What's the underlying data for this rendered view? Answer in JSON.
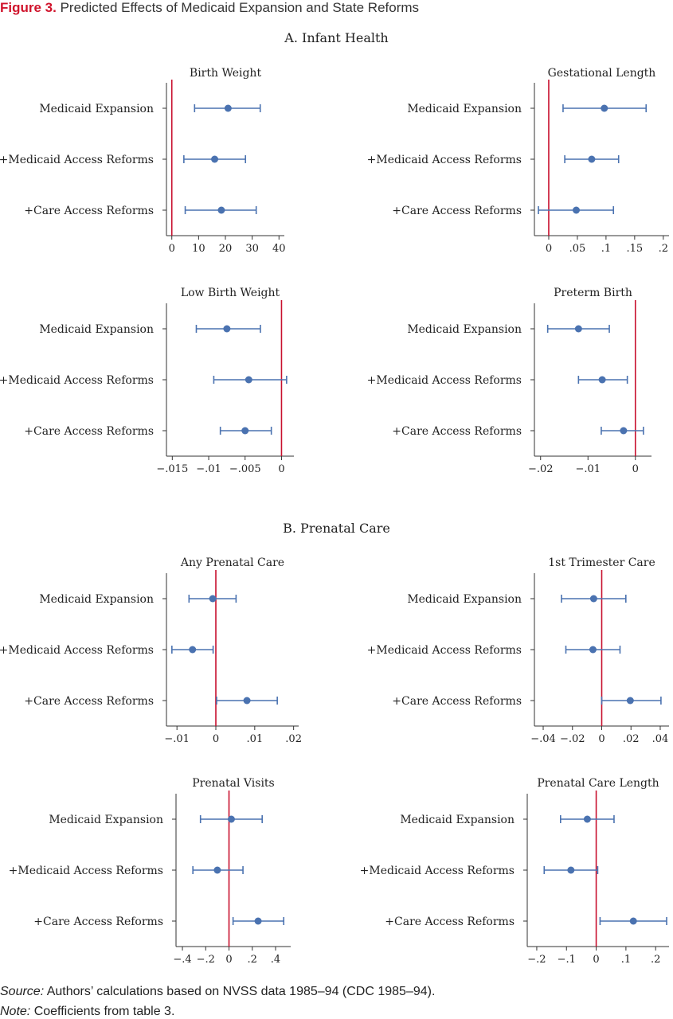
{
  "figure": {
    "label": "Figure 3.",
    "title": "Predicted Effects of Medicaid Expansion and State Reforms"
  },
  "panels": {
    "a": "A. Infant Health",
    "b": "B. Prenatal Care"
  },
  "footer": {
    "source_label": "Source:",
    "source_text": "Authors’ calculations based on NVSS data 1985–94 (CDC 1985–94).",
    "note_label": "Note:",
    "note_text": "Coefficients from table 3."
  },
  "colors": {
    "point": "#4a72b0",
    "zero_line": "#c8102e",
    "axis": "#333333"
  },
  "chart_data": [
    {
      "type": "scatter",
      "title": "Birth Weight",
      "categories": [
        "Medicaid Expansion",
        "+Medicaid Access Reforms",
        "+Care Access Reforms"
      ],
      "estimates": [
        21,
        16,
        18.5
      ],
      "ci_low": [
        8.5,
        4.5,
        5
      ],
      "ci_high": [
        33,
        27.5,
        31.5
      ],
      "xlim": [
        -2,
        42
      ],
      "xticks": [
        0,
        10,
        20,
        30,
        40
      ],
      "xtick_labels": [
        "0",
        "10",
        "20",
        "30",
        "40"
      ],
      "reference_line": 0
    },
    {
      "type": "scatter",
      "title": "Gestational Length",
      "categories": [
        "Medicaid Expansion",
        "+Medicaid Access Reforms",
        "+Care Access Reforms"
      ],
      "estimates": [
        0.097,
        0.075,
        0.048
      ],
      "ci_low": [
        0.025,
        0.028,
        -0.018
      ],
      "ci_high": [
        0.17,
        0.122,
        0.113
      ],
      "xlim": [
        -0.025,
        0.21
      ],
      "xticks": [
        0,
        0.05,
        0.1,
        0.15,
        0.2
      ],
      "xtick_labels": [
        "0",
        ".05",
        ".1",
        ".15",
        ".2"
      ],
      "reference_line": 0
    },
    {
      "type": "scatter",
      "title": "Low Birth Weight",
      "categories": [
        "Medicaid Expansion",
        "+Medicaid Access Reforms",
        "+Care Access Reforms"
      ],
      "estimates": [
        -0.0075,
        -0.0045,
        -0.005
      ],
      "ci_low": [
        -0.0117,
        -0.0093,
        -0.0084
      ],
      "ci_high": [
        -0.0029,
        0.0007,
        -0.0014
      ],
      "xlim": [
        -0.0158,
        0.0017
      ],
      "xticks": [
        -0.015,
        -0.01,
        -0.005,
        0
      ],
      "xtick_labels": [
        "−.015",
        "−.01",
        "−.005",
        "0"
      ],
      "reference_line": 0
    },
    {
      "type": "scatter",
      "title": "Preterm Birth",
      "categories": [
        "Medicaid Expansion",
        "+Medicaid Access Reforms",
        "+Care Access Reforms"
      ],
      "estimates": [
        -0.012,
        -0.007,
        -0.0025
      ],
      "ci_low": [
        -0.0185,
        -0.012,
        -0.0072
      ],
      "ci_high": [
        -0.0055,
        -0.0017,
        0.0017
      ],
      "xlim": [
        -0.0213,
        0.0034
      ],
      "xticks": [
        -0.02,
        -0.01,
        0
      ],
      "xtick_labels": [
        "−.02",
        "−.01",
        "0"
      ],
      "reference_line": 0
    },
    {
      "type": "scatter",
      "title": "Any Prenatal Care",
      "categories": [
        "Medicaid Expansion",
        "+Medicaid Access Reforms",
        "+Care Access Reforms"
      ],
      "estimates": [
        -0.0008,
        -0.006,
        0.008
      ],
      "ci_low": [
        -0.0069,
        -0.0113,
        0.0002
      ],
      "ci_high": [
        0.0052,
        -0.0007,
        0.0158
      ],
      "xlim": [
        -0.0127,
        0.0213
      ],
      "xticks": [
        -0.01,
        0,
        0.01,
        0.02
      ],
      "xtick_labels": [
        "−.01",
        "0",
        ".01",
        ".02"
      ],
      "reference_line": 0
    },
    {
      "type": "scatter",
      "title": "1st Trimester Care",
      "categories": [
        "Medicaid Expansion",
        "+Medicaid Access Reforms",
        "+Care Access Reforms"
      ],
      "estimates": [
        -0.0055,
        -0.006,
        0.0195
      ],
      "ci_low": [
        -0.0275,
        -0.0245,
        0
      ],
      "ci_high": [
        0.0165,
        0.0125,
        0.0405
      ],
      "xlim": [
        -0.046,
        0.046
      ],
      "xticks": [
        -0.04,
        -0.02,
        0,
        0.02,
        0.04
      ],
      "xtick_labels": [
        "−.04",
        "−.02",
        "0",
        ".02",
        ".04"
      ],
      "reference_line": 0
    },
    {
      "type": "scatter",
      "title": "Prenatal Visits",
      "categories": [
        "Medicaid Expansion",
        "+Medicaid Access Reforms",
        "+Care Access Reforms"
      ],
      "estimates": [
        0.02,
        -0.1,
        0.25
      ],
      "ci_low": [
        -0.245,
        -0.31,
        0.035
      ],
      "ci_high": [
        0.285,
        0.12,
        0.47
      ],
      "xlim": [
        -0.455,
        0.53
      ],
      "xticks": [
        -0.4,
        -0.2,
        0,
        0.2,
        0.4
      ],
      "xtick_labels": [
        "−.4",
        "−.2",
        "0",
        ".2",
        ".4"
      ],
      "reference_line": 0
    },
    {
      "type": "scatter",
      "title": "Prenatal Care Length",
      "categories": [
        "Medicaid Expansion",
        "+Medicaid Access Reforms",
        "+Care Access Reforms"
      ],
      "estimates": [
        -0.03,
        -0.085,
        0.125
      ],
      "ci_low": [
        -0.12,
        -0.175,
        0.013
      ],
      "ci_high": [
        0.06,
        0.005,
        0.237
      ],
      "xlim": [
        -0.232,
        0.245
      ],
      "xticks": [
        -0.2,
        -0.1,
        0,
        0.1,
        0.2
      ],
      "xtick_labels": [
        "−.2",
        "−.1",
        "0",
        ".1",
        ".2"
      ],
      "reference_line": 0
    }
  ]
}
